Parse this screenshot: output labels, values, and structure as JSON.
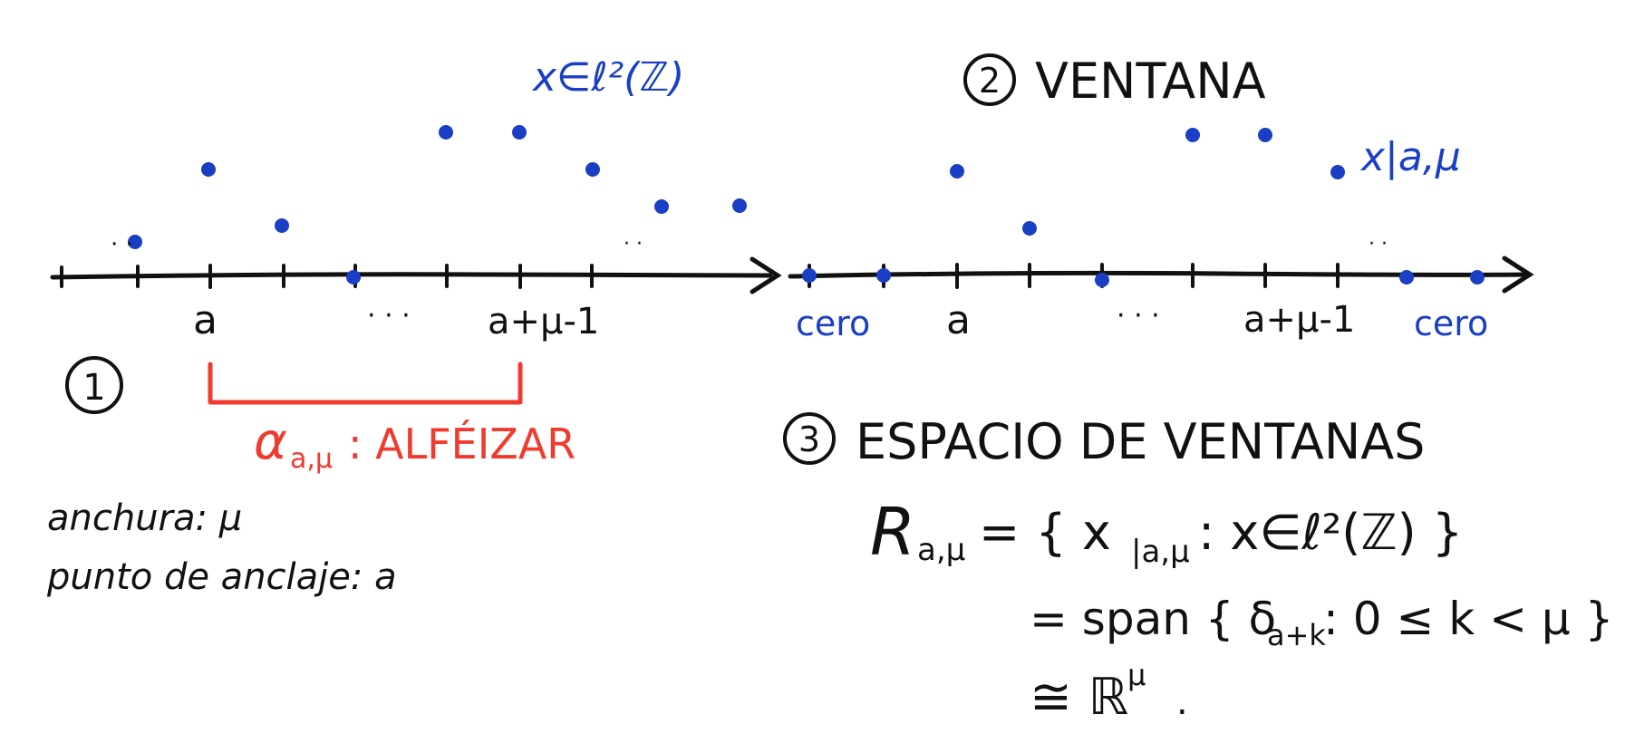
{
  "colors": {
    "ink": "#111111",
    "blue": "#1a3fc4",
    "red": "#f03a2e"
  },
  "panel1": {
    "number": "1",
    "sequence_label": "x∈ℓ²(ℤ)",
    "tick_a": "a",
    "tick_dots": "· · ·",
    "tick_end": "a+μ-1",
    "left_dots": "· ·",
    "right_dots": "· ·",
    "sill_label": "α",
    "sill_sub": "a,μ",
    "sill_text": ": ALFÉIZAR",
    "width_line": "anchura: μ",
    "anchor_line": "punto de anclaje: a"
  },
  "panel2": {
    "number": "2",
    "title": "VENTANA",
    "window_label": "x|a,μ",
    "tick_a": "a",
    "tick_dots": "· · ·",
    "tick_end": "a+μ-1",
    "right_dots": "· ·",
    "zero_left": "cero",
    "zero_right": "cero"
  },
  "panel3": {
    "number": "3",
    "title": "ESPACIO DE VENTANAS",
    "line1": "R",
    "line1_sub": "a,μ",
    "line1_rest": " = { x",
    "line1_sub2": "|a,μ",
    "line1_tail": " : x∈ℓ²(ℤ) }",
    "line2": "= span { δ",
    "line2_sub": "a+k",
    "line2_tail": " : 0 ≤ k < μ }",
    "line3": "≅ ℝ",
    "line3_sup": "μ",
    "line3_tail": "."
  }
}
